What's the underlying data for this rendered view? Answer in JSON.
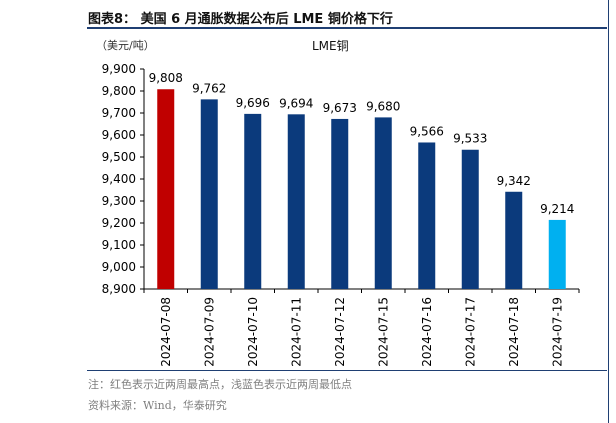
{
  "header": {
    "figure_title": "图表8：  美国 6 月通胀数据公布后 LME 铜价格下行"
  },
  "chart": {
    "unit_label": "（美元/吨）"
  },
  "footer": {
    "note": "注：红色表示近两周最高点，浅蓝色表示近两周最低点",
    "source": "资料来源：Wind，华泰研究"
  },
  "colors": {
    "default_bar": "#0b3a7c",
    "highest_bar": "#c00000",
    "lowest_bar": "#00b0f0",
    "axis": "#000000",
    "rule": "#1f3f73"
  },
  "chart_data": {
    "type": "bar",
    "title": "",
    "xlabel": "",
    "ylabel": "（美元/吨）",
    "series": [
      {
        "name": "LME铜",
        "values": [
          9808,
          9762,
          9696,
          9694,
          9673,
          9680,
          9566,
          9533,
          9342,
          9214
        ],
        "value_labels": [
          "9,808",
          "9,762",
          "9,696",
          "9,694",
          "9,673",
          "9,680",
          "9,566",
          "9,533",
          "9,342",
          "9,214"
        ]
      }
    ],
    "categories": [
      "2024-07-08",
      "2024-07-09",
      "2024-07-10",
      "2024-07-11",
      "2024-07-12",
      "2024-07-15",
      "2024-07-16",
      "2024-07-17",
      "2024-07-18",
      "2024-07-19"
    ],
    "highlight": {
      "highest_index": 0,
      "lowest_index": 9
    },
    "ylim": [
      8900,
      9900
    ],
    "yticks": [
      8900,
      9000,
      9100,
      9200,
      9300,
      9400,
      9500,
      9600,
      9700,
      9800,
      9900
    ],
    "ytick_labels": [
      "8,900",
      "9,000",
      "9,100",
      "9,200",
      "9,300",
      "9,400",
      "9,500",
      "9,600",
      "9,700",
      "9,800",
      "9,900"
    ],
    "grid": false,
    "legend": "top-center"
  }
}
